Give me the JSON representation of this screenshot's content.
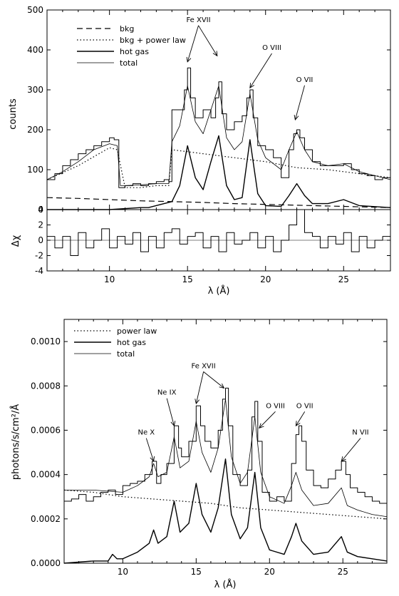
{
  "chart_data": [
    {
      "type": "line",
      "panel": "top-spectrum",
      "ylabel": "counts",
      "xlim": [
        6,
        28
      ],
      "ylim": [
        0,
        500
      ],
      "yticks": [
        "0",
        "100",
        "200",
        "300",
        "400",
        "500"
      ],
      "legend": {
        "placement": "top-left",
        "entries": [
          {
            "label": "bkg",
            "style": "dashed"
          },
          {
            "label": "bkg + power law",
            "style": "dotted"
          },
          {
            "label": "hot gas",
            "style": "solid"
          },
          {
            "label": "total",
            "style": "solid-thin"
          }
        ]
      },
      "annotations": [
        {
          "label": "Fe XVII",
          "x": 15.7,
          "y": 470,
          "targets": [
            [
              15.0,
              370
            ],
            [
              16.9,
              385
            ]
          ]
        },
        {
          "label": "O VIII",
          "x": 20.4,
          "y": 400,
          "targets": [
            [
              19.0,
              305
            ]
          ]
        },
        {
          "label": "O VII",
          "x": 22.5,
          "y": 320,
          "targets": [
            [
              21.9,
              225
            ]
          ]
        }
      ],
      "series": [
        {
          "style": "histogram",
          "x": [
            6,
            6.5,
            7,
            7.5,
            8,
            8.5,
            9,
            9.5,
            10,
            10.3,
            10.6,
            11,
            11.5,
            12,
            12.5,
            13,
            13.5,
            13.8,
            14,
            14.5,
            14.8,
            15,
            15.2,
            15.5,
            16,
            16.5,
            16.8,
            17,
            17.2,
            17.5,
            18,
            18.5,
            18.8,
            19,
            19.2,
            19.5,
            20,
            20.5,
            21,
            21.5,
            21.8,
            22,
            22.2,
            22.5,
            23,
            23.5,
            24,
            24.5,
            25,
            25.5,
            26,
            26.5,
            27,
            27.5,
            28
          ],
          "y": [
            75,
            90,
            110,
            125,
            140,
            150,
            160,
            170,
            180,
            175,
            55,
            60,
            65,
            60,
            65,
            70,
            75,
            70,
            250,
            250,
            300,
            355,
            280,
            230,
            250,
            230,
            280,
            320,
            240,
            200,
            220,
            235,
            280,
            300,
            230,
            160,
            150,
            130,
            80,
            150,
            190,
            200,
            180,
            150,
            120,
            110,
            110,
            110,
            115,
            100,
            90,
            85,
            75,
            80,
            75
          ]
        },
        {
          "name": "bkg",
          "x": [
            6,
            8,
            10,
            12,
            14,
            16,
            18,
            20,
            22,
            24,
            26,
            28
          ],
          "y": [
            30,
            28,
            25,
            22,
            20,
            18,
            15,
            13,
            11,
            9,
            7,
            5
          ]
        },
        {
          "name": "bkg + power law",
          "x": [
            6,
            8,
            10,
            10.5,
            11,
            12,
            13,
            13.8,
            14,
            16,
            18,
            20,
            22,
            24,
            26,
            28
          ],
          "y": [
            75,
            110,
            155,
            150,
            55,
            55,
            60,
            60,
            150,
            140,
            130,
            120,
            105,
            100,
            90,
            80
          ]
        },
        {
          "name": "hot gas",
          "x": [
            6,
            8,
            10,
            12,
            12.5,
            13.5,
            14,
            14.5,
            15,
            15.5,
            16,
            16.5,
            17,
            17.5,
            18,
            18.5,
            19,
            19.5,
            20,
            21,
            21.5,
            22,
            22.5,
            23,
            24,
            25,
            26,
            28
          ],
          "y": [
            0,
            0,
            0,
            5,
            5,
            15,
            20,
            60,
            160,
            80,
            50,
            120,
            185,
            60,
            25,
            30,
            175,
            40,
            10,
            8,
            35,
            65,
            35,
            15,
            15,
            25,
            10,
            5
          ]
        },
        {
          "name": "total",
          "x": [
            6,
            7,
            8,
            9,
            10,
            10.5,
            10.7,
            11,
            12,
            13,
            13.8,
            14,
            14.5,
            15,
            15.5,
            16,
            16.5,
            17,
            17.5,
            18,
            18.5,
            19,
            19.5,
            20,
            21,
            21.5,
            22,
            22.5,
            23,
            24,
            25,
            26,
            27,
            28
          ],
          "y": [
            75,
            95,
            120,
            150,
            165,
            160,
            60,
            60,
            62,
            65,
            65,
            170,
            210,
            310,
            220,
            190,
            250,
            310,
            180,
            150,
            170,
            290,
            175,
            130,
            100,
            150,
            195,
            150,
            120,
            110,
            115,
            95,
            85,
            75
          ]
        }
      ]
    },
    {
      "type": "line",
      "panel": "residuals",
      "xlabel": "λ (Å)",
      "ylabel": "Δχ",
      "xlim": [
        6,
        28
      ],
      "ylim": [
        -4,
        4
      ],
      "xticks": [
        "10",
        "15",
        "20",
        "25"
      ],
      "yticks": [
        "-4",
        "-2",
        "0",
        "2",
        "4"
      ],
      "series": [
        {
          "style": "histogram",
          "x": [
            6,
            6.5,
            7,
            7.5,
            8,
            8.5,
            9,
            9.5,
            10,
            10.5,
            11,
            11.5,
            12,
            12.5,
            13,
            13.5,
            14,
            14.5,
            15,
            15.5,
            16,
            16.5,
            17,
            17.5,
            18,
            18.5,
            19,
            19.5,
            20,
            20.5,
            21,
            21.5,
            22,
            22.5,
            23,
            23.5,
            24,
            24.5,
            25,
            25.5,
            26,
            26.5,
            27,
            27.5,
            28
          ],
          "y": [
            0.5,
            -1,
            0.5,
            -2,
            1,
            -1,
            0,
            1.5,
            -1,
            0.5,
            -0.5,
            1,
            -1.5,
            0.5,
            -1,
            1,
            1.5,
            -0.5,
            0.5,
            1,
            -1,
            0.5,
            -1.5,
            1,
            -0.5,
            0,
            1,
            -1,
            0.5,
            -1.5,
            0,
            2,
            4,
            1,
            0.5,
            -1,
            0.5,
            -0.5,
            1,
            -1.5,
            0.5,
            -1,
            0,
            0.5,
            -0.5
          ]
        }
      ]
    },
    {
      "type": "line",
      "panel": "bottom-spectrum",
      "xlabel": "λ (Å)",
      "ylabel": "photons/s/cm²/Å",
      "xlim": [
        6,
        28
      ],
      "ylim": [
        0,
        0.0011
      ],
      "xticks": [
        "10",
        "15",
        "20",
        "25"
      ],
      "yticks": [
        "0.0000",
        "0.0002",
        "0.0004",
        "0.0006",
        "0.0008",
        "0.0010"
      ],
      "legend": {
        "placement": "top-left",
        "entries": [
          {
            "label": "power law",
            "style": "dotted"
          },
          {
            "label": "hot gas",
            "style": "solid"
          },
          {
            "label": "total",
            "style": "solid-thin"
          }
        ]
      },
      "annotations": [
        {
          "label": "Ne X",
          "x": 11.6,
          "y": 0.00058,
          "targets": [
            [
              12.1,
              0.00046
            ]
          ]
        },
        {
          "label": "Ne IX",
          "x": 13.0,
          "y": 0.00076,
          "targets": [
            [
              13.5,
              0.00062
            ]
          ]
        },
        {
          "label": "Fe XVII",
          "x": 15.5,
          "y": 0.00088,
          "targets": [
            [
              15.0,
              0.00072
            ],
            [
              16.9,
              0.00079
            ]
          ]
        },
        {
          "label": "O VIII",
          "x": 20.4,
          "y": 0.0007,
          "targets": [
            [
              19.3,
              0.00061
            ]
          ]
        },
        {
          "label": "O VII",
          "x": 22.4,
          "y": 0.0007,
          "targets": [
            [
              21.8,
              0.00062
            ]
          ]
        },
        {
          "label": "N VII",
          "x": 26.2,
          "y": 0.00058,
          "targets": [
            [
              24.9,
              0.00046
            ]
          ]
        }
      ],
      "series": [
        {
          "style": "histogram",
          "x": [
            6,
            6.5,
            7,
            7.5,
            8,
            8.5,
            9,
            9.5,
            10,
            10.5,
            11,
            11.5,
            12,
            12.3,
            12.6,
            13,
            13.5,
            13.8,
            14,
            14.5,
            15,
            15.3,
            15.6,
            16,
            16.5,
            16.8,
            17,
            17.2,
            17.5,
            18,
            18.5,
            18.8,
            19,
            19.2,
            19.5,
            20,
            20.5,
            21,
            21.5,
            21.8,
            22,
            22.2,
            22.5,
            23,
            23.5,
            24,
            24.5,
            24.9,
            25.2,
            25.5,
            26,
            26.5,
            27,
            27.5,
            28
          ],
          "y": [
            0.00028,
            0.00029,
            0.00031,
            0.00028,
            0.0003,
            0.00032,
            0.00033,
            0.00031,
            0.00035,
            0.00036,
            0.00037,
            0.0004,
            0.00046,
            0.00036,
            0.0004,
            0.00045,
            0.00062,
            0.00052,
            0.00048,
            0.00055,
            0.00071,
            0.00062,
            0.00055,
            0.00052,
            0.0006,
            0.00074,
            0.00079,
            0.00062,
            0.0004,
            0.00035,
            0.00042,
            0.00066,
            0.00073,
            0.00055,
            0.00032,
            0.00028,
            0.0003,
            0.00028,
            0.00045,
            0.00058,
            0.00062,
            0.00055,
            0.00042,
            0.00035,
            0.00034,
            0.00038,
            0.00042,
            0.00046,
            0.0004,
            0.00034,
            0.00032,
            0.0003,
            0.00028,
            0.00027,
            0.00026
          ]
        },
        {
          "name": "power law",
          "x": [
            6,
            8,
            10,
            12,
            14,
            16,
            18,
            20,
            22,
            24,
            26,
            28
          ],
          "y": [
            0.00033,
            0.00032,
            0.0003,
            0.00029,
            0.00028,
            0.00027,
            0.00025,
            0.00024,
            0.00023,
            0.00022,
            0.00021,
            0.0002
          ]
        },
        {
          "name": "hot gas",
          "x": [
            6,
            8,
            9,
            9.3,
            9.6,
            10,
            11,
            11.8,
            12.1,
            12.4,
            13,
            13.5,
            13.9,
            14.5,
            15,
            15.4,
            16,
            16.5,
            17,
            17.4,
            18,
            18.5,
            19,
            19.4,
            20,
            21,
            21.5,
            21.8,
            22.2,
            23,
            24,
            24.9,
            25.3,
            26,
            27,
            28
          ],
          "y": [
            0,
            1e-05,
            1e-05,
            4e-05,
            2e-05,
            2e-05,
            5e-05,
            9e-05,
            0.00015,
            9e-05,
            0.00012,
            0.00028,
            0.00014,
            0.00018,
            0.00036,
            0.00022,
            0.00014,
            0.00025,
            0.00047,
            0.00022,
            0.00011,
            0.00016,
            0.00041,
            0.00016,
            6e-05,
            4e-05,
            0.00012,
            0.00018,
            0.0001,
            4e-05,
            5e-05,
            0.00012,
            5e-05,
            3e-05,
            2e-05,
            1e-05
          ]
        },
        {
          "name": "total",
          "x": [
            6,
            8,
            10,
            11,
            11.8,
            12.1,
            12.4,
            13,
            13.5,
            13.9,
            14.5,
            15,
            15.4,
            16,
            16.5,
            17,
            17.4,
            18,
            18.5,
            19,
            19.4,
            20,
            21,
            21.5,
            21.8,
            22.2,
            23,
            24,
            24.9,
            25.3,
            26,
            27,
            28
          ],
          "y": [
            0.00033,
            0.00033,
            0.00032,
            0.00035,
            0.00039,
            0.00045,
            0.00039,
            0.00041,
            0.00057,
            0.00043,
            0.00046,
            0.00064,
            0.0005,
            0.00041,
            0.00052,
            0.00074,
            0.00048,
            0.00036,
            0.00041,
            0.00066,
            0.00041,
            0.0003,
            0.00027,
            0.00035,
            0.00041,
            0.00033,
            0.00026,
            0.00027,
            0.00034,
            0.00026,
            0.00024,
            0.00022,
            0.00021
          ]
        }
      ]
    }
  ]
}
